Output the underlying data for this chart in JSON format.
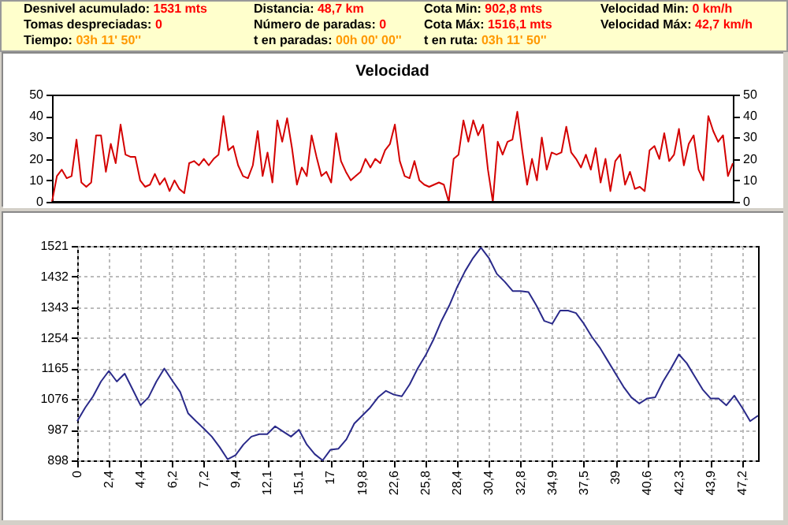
{
  "chart_data": [
    {
      "type": "other",
      "annotations": [
        "Desnivel acumulado:",
        "1531 mts",
        "Distancia:",
        "48,7 km",
        "Cota Min:",
        "902,8 mts",
        "Velocidad Min:",
        "0 km/h",
        "Tomas despreciadas:",
        "0",
        "Número de paradas:",
        "0",
        "Cota Máx:",
        "1516,1 mts",
        "Velocidad Máx:",
        "42,7 km/h",
        "Tiempo:",
        "03h 11' 50''",
        "t en paradas:",
        "00h 00' 00''",
        "t en ruta:",
        "03h 11' 50''"
      ],
      "colors": [
        "#000000",
        "#ff0000",
        "#000000",
        "#ff0000",
        "#000000",
        "#ff0000",
        "#000000",
        "#ff0000",
        "#000000",
        "#ff0000",
        "#000000",
        "#ff0000",
        "#000000",
        "#ff0000",
        "#000000",
        "#ff0000",
        "#000000",
        "#ff9900",
        "#000000",
        "#ff9900",
        "#000000",
        "#ff9900"
      ]
    },
    {
      "type": "line",
      "title": "Velocidad",
      "color": "#d40000",
      "ylim": [
        0,
        50
      ],
      "yticks": [
        0,
        10,
        20,
        30,
        40,
        50
      ],
      "y2lim": [
        0,
        50
      ],
      "y2ticks": [
        0,
        10,
        20,
        30,
        40,
        50
      ],
      "categories": [
        null,
        null,
        null,
        null,
        null,
        null,
        null,
        null,
        null,
        null,
        null,
        null,
        null,
        null,
        null,
        null,
        null,
        null,
        null,
        null,
        null,
        null,
        null,
        null,
        null,
        null,
        null,
        null,
        null,
        null,
        null,
        null,
        null,
        null,
        null,
        null,
        null,
        null,
        null,
        null,
        null,
        null,
        null,
        null,
        null,
        null,
        null,
        null,
        null,
        null,
        null,
        null,
        null,
        null,
        null,
        null,
        null,
        null,
        null,
        null,
        null,
        null,
        null,
        null,
        null,
        null,
        null,
        null,
        null,
        null,
        null,
        null,
        null,
        null,
        null,
        null,
        null,
        null,
        null,
        null,
        null,
        null,
        null,
        null,
        null,
        null,
        null,
        null,
        null,
        null,
        null,
        null,
        null,
        null,
        null,
        null,
        null,
        null,
        null,
        null,
        null,
        null,
        null,
        null,
        null,
        null,
        null,
        null,
        null,
        null,
        null,
        null,
        null,
        null,
        null,
        null,
        null,
        null,
        null,
        null,
        null,
        null,
        null,
        null,
        null,
        null,
        null,
        null,
        null,
        null,
        null,
        null,
        null,
        null,
        null,
        null,
        null,
        null,
        null,
        null
      ],
      "values": [
        0,
        12,
        15,
        11,
        12,
        29,
        9,
        7,
        9,
        31,
        31,
        14,
        27,
        18,
        36,
        22,
        21,
        21,
        10,
        7,
        8,
        13,
        8,
        11,
        5,
        10,
        6,
        4,
        18,
        19,
        17,
        20,
        17,
        20,
        22,
        40,
        24,
        26,
        17,
        12,
        11,
        17,
        33,
        12,
        23,
        9,
        38,
        28,
        39,
        25,
        8,
        16,
        12,
        31,
        21,
        12,
        14,
        9,
        32,
        19,
        14,
        10,
        12,
        14,
        20,
        16,
        20,
        18,
        24,
        27,
        36,
        19,
        12,
        11,
        19,
        10,
        8,
        7,
        8,
        9,
        8,
        0,
        20,
        22,
        38,
        28,
        38,
        31,
        36,
        15,
        0,
        28,
        22,
        28,
        29,
        42,
        24,
        8,
        20,
        10,
        30,
        15,
        23,
        22,
        23,
        35,
        23,
        20,
        16,
        22,
        15,
        25,
        9,
        20,
        5,
        19,
        22,
        8,
        14,
        6,
        7,
        5,
        24,
        26,
        20,
        32,
        19,
        22,
        34,
        17,
        27,
        31,
        15,
        10,
        40,
        33,
        28,
        31,
        12,
        18
      ]
    },
    {
      "type": "line",
      "color": "#2a2a8a",
      "grid": true,
      "ylim": [
        898,
        1521
      ],
      "yticks": [
        898,
        987,
        1076,
        1165,
        1254,
        1343,
        1432,
        1521
      ],
      "categories": [
        "0",
        null,
        null,
        null,
        "2,4",
        null,
        null,
        null,
        "4,4",
        null,
        null,
        null,
        "6,2",
        null,
        null,
        null,
        "7,2",
        null,
        null,
        null,
        "9,4",
        null,
        null,
        null,
        "12,1",
        null,
        null,
        null,
        "15,1",
        null,
        null,
        null,
        "17",
        null,
        null,
        null,
        "19,8",
        null,
        null,
        null,
        "22,6",
        null,
        null,
        null,
        "25,8",
        null,
        null,
        null,
        "28,4",
        null,
        null,
        null,
        "30,4",
        null,
        null,
        null,
        "32,8",
        null,
        null,
        null,
        "34,9",
        null,
        null,
        null,
        "37,5",
        null,
        null,
        null,
        "39",
        null,
        null,
        null,
        "40,6",
        null,
        null,
        null,
        "42,3",
        null,
        null,
        null,
        "43,9",
        null,
        null,
        null,
        "47,2",
        null,
        null
      ],
      "values": [
        1012,
        1051,
        1084,
        1127,
        1158,
        1127,
        1150,
        1104,
        1058,
        1081,
        1127,
        1165,
        1130,
        1097,
        1035,
        1012,
        990,
        967,
        936,
        901,
        913,
        944,
        967,
        974,
        974,
        997,
        982,
        967,
        987,
        944,
        916,
        898,
        929,
        932,
        959,
        1005,
        1028,
        1051,
        1081,
        1100,
        1089,
        1084,
        1119,
        1165,
        1203,
        1249,
        1303,
        1348,
        1402,
        1448,
        1486,
        1516,
        1486,
        1440,
        1417,
        1390,
        1390,
        1387,
        1348,
        1303,
        1295,
        1333,
        1333,
        1326,
        1295,
        1257,
        1226,
        1188,
        1150,
        1112,
        1081,
        1063,
        1078,
        1081,
        1127,
        1165,
        1206,
        1180,
        1142,
        1104,
        1078,
        1078,
        1058,
        1086,
        1051,
        1012,
        1028
      ]
    }
  ]
}
